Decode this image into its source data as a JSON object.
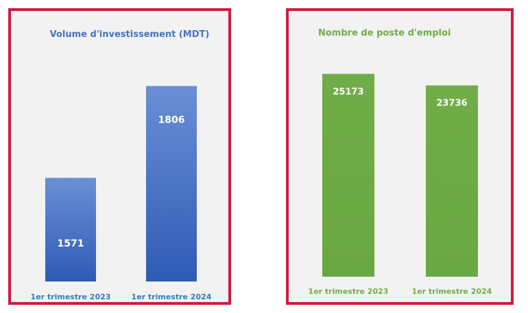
{
  "chart_data": [
    {
      "type": "bar",
      "title": "Volume d'investissement (MDT)",
      "categories": [
        "1er trimestre 2023",
        "1er trimestre 2024"
      ],
      "values": [
        1571,
        1806
      ],
      "value_labels": [
        "1571",
        "1806"
      ],
      "xlabel": "",
      "ylabel": "",
      "ylim": [
        1306,
        1856
      ],
      "grid": false,
      "legend": "none",
      "bar_color": "#4472c4",
      "label_color": "#4472c4"
    },
    {
      "type": "bar",
      "title": "Nombre de poste d'emploi",
      "categories": [
        "1er trimestre 2023",
        "1er trimestre 2024"
      ],
      "values": [
        25173,
        23736
      ],
      "value_labels": [
        "25173",
        "23736"
      ],
      "xlabel": "",
      "ylabel": "",
      "ylim": [
        0,
        30000
      ],
      "grid": false,
      "legend": "none",
      "bar_color": "#70ad47",
      "label_color": "#70ad47"
    }
  ]
}
